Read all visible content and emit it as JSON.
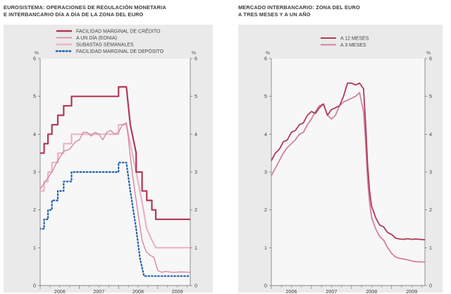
{
  "chart_data": [
    {
      "type": "line",
      "title": "EUROSISTEMA: OPERACIONES DE REGULACIÓN MONETARIA\nE INTERBANCARIO DÍA A DÍA DE LA ZONA DEL EURO",
      "unit_left": "%",
      "unit_right": "%",
      "x_tick_labels": [
        "2006",
        "2007",
        "2008",
        "2009"
      ],
      "xlim": [
        2006,
        2009.83
      ],
      "ylim": [
        0,
        6
      ],
      "y_ticks": [
        0,
        1,
        2,
        3,
        4,
        5,
        6
      ],
      "legend_position": "top",
      "series": [
        {
          "name": "FACILIDAD MARGINAL DE CRÉDITO",
          "color": "#b03a55",
          "style": "solid",
          "width": 2.2,
          "x": [
            2005.9,
            2006.0,
            2006.1,
            2006.1,
            2006.2,
            2006.2,
            2006.3,
            2006.3,
            2006.45,
            2006.45,
            2006.6,
            2006.6,
            2006.8,
            2006.8,
            2006.95,
            2006.95,
            2007.45,
            2007.45,
            2008.0,
            2008.0,
            2008.2,
            2008.3,
            2008.45,
            2008.45,
            2008.6,
            2008.6,
            2008.72,
            2008.72,
            2008.85,
            2008.85,
            2008.95,
            2008.95,
            2009.83
          ],
          "values": [
            3.5,
            3.5,
            3.5,
            3.75,
            3.75,
            4.0,
            4.0,
            4.25,
            4.25,
            4.5,
            4.5,
            4.75,
            4.75,
            5.0,
            5.0,
            5.0,
            5.0,
            5.0,
            5.0,
            5.25,
            5.25,
            4.25,
            3.5,
            3.0,
            3.0,
            2.5,
            2.5,
            2.25,
            2.25,
            2.0,
            2.0,
            1.75,
            1.75
          ]
        },
        {
          "name": "A UN DÍA (EONIA)",
          "color": "#d5809c",
          "style": "solid",
          "width": 1.3,
          "x": [
            2005.9,
            2006.0,
            2006.1,
            2006.2,
            2006.3,
            2006.45,
            2006.6,
            2006.75,
            2006.9,
            2007.0,
            2007.1,
            2007.2,
            2007.3,
            2007.4,
            2007.5,
            2007.6,
            2007.7,
            2007.8,
            2007.9,
            2008.0,
            2008.1,
            2008.2,
            2008.25,
            2008.3,
            2008.4,
            2008.5,
            2008.6,
            2008.7,
            2008.8,
            2008.9,
            2009.0,
            2009.1,
            2009.2,
            2009.4,
            2009.6,
            2009.83
          ],
          "values": [
            2.6,
            2.55,
            2.7,
            2.85,
            3.0,
            3.3,
            3.55,
            3.6,
            3.8,
            3.85,
            4.05,
            4.05,
            3.95,
            4.05,
            4.0,
            3.85,
            4.05,
            4.1,
            4.0,
            4.05,
            4.25,
            4.3,
            3.9,
            3.4,
            2.6,
            1.9,
            1.2,
            0.9,
            0.8,
            0.75,
            0.4,
            0.35,
            0.37,
            0.35,
            0.36,
            0.35
          ]
        },
        {
          "name": "SUBASTAS SEMANALES",
          "color": "#e9b5c4",
          "style": "solid",
          "width": 2.2,
          "x": [
            2005.9,
            2006.0,
            2006.1,
            2006.1,
            2006.2,
            2006.2,
            2006.3,
            2006.3,
            2006.45,
            2006.45,
            2006.6,
            2006.6,
            2006.8,
            2006.8,
            2006.95,
            2006.95,
            2007.45,
            2007.45,
            2008.0,
            2008.0,
            2008.2,
            2008.3,
            2008.45,
            2008.6,
            2008.72,
            2008.85,
            2008.95,
            2008.95,
            2009.83
          ],
          "values": [
            2.5,
            2.5,
            2.5,
            2.75,
            2.75,
            3.0,
            3.0,
            3.25,
            3.25,
            3.5,
            3.5,
            3.75,
            3.75,
            4.0,
            4.0,
            4.0,
            4.0,
            4.0,
            4.0,
            4.25,
            4.25,
            3.75,
            3.0,
            2.2,
            1.5,
            1.2,
            1.0,
            1.0,
            1.0
          ]
        },
        {
          "name": "FACILIDAD MARGINAL DE DEPÓSITO",
          "color": "#1f5fa8",
          "style": "dotted",
          "width": 2.2,
          "x": [
            2005.9,
            2006.0,
            2006.1,
            2006.1,
            2006.2,
            2006.2,
            2006.3,
            2006.3,
            2006.45,
            2006.45,
            2006.6,
            2006.6,
            2006.8,
            2006.8,
            2006.95,
            2006.95,
            2007.45,
            2007.45,
            2008.0,
            2008.0,
            2008.2,
            2008.3,
            2008.45,
            2008.55,
            2008.65,
            2008.75,
            2008.85,
            2008.95,
            2009.83
          ],
          "values": [
            1.5,
            1.5,
            1.5,
            1.75,
            1.75,
            2.0,
            2.0,
            2.25,
            2.25,
            2.5,
            2.5,
            2.75,
            2.75,
            3.0,
            3.0,
            3.0,
            3.0,
            3.0,
            3.0,
            3.25,
            3.25,
            2.5,
            1.5,
            0.7,
            0.25,
            0.25,
            0.25,
            0.25,
            0.25
          ]
        }
      ]
    },
    {
      "type": "line",
      "title": "MERCADO INTERBANCARIO: ZONA DEL EURO\nA TRES MESES Y A UN AÑO",
      "unit_left": "%",
      "unit_right": "%",
      "x_tick_labels": [
        "2006",
        "2007",
        "2008",
        "2009"
      ],
      "xlim": [
        2006,
        2009.83
      ],
      "ylim": [
        0,
        6
      ],
      "y_ticks": [
        0,
        1,
        2,
        3,
        4,
        5,
        6
      ],
      "legend_position": "top-left",
      "series": [
        {
          "name": "A 12 MESES",
          "color": "#b03a55",
          "style": "solid",
          "width": 1.8,
          "x": [
            2005.9,
            2006.0,
            2006.1,
            2006.2,
            2006.3,
            2006.4,
            2006.5,
            2006.6,
            2006.7,
            2006.8,
            2006.9,
            2007.0,
            2007.1,
            2007.2,
            2007.3,
            2007.4,
            2007.5,
            2007.6,
            2007.7,
            2007.8,
            2007.9,
            2008.0,
            2008.1,
            2008.2,
            2008.3,
            2008.35,
            2008.4,
            2008.45,
            2008.5,
            2008.6,
            2008.7,
            2008.8,
            2008.9,
            2009.0,
            2009.1,
            2009.2,
            2009.3,
            2009.4,
            2009.5,
            2009.6,
            2009.83
          ],
          "values": [
            3.2,
            3.3,
            3.5,
            3.6,
            3.8,
            3.85,
            4.05,
            4.1,
            4.25,
            4.3,
            4.5,
            4.6,
            4.55,
            4.7,
            4.8,
            4.5,
            4.65,
            4.7,
            4.75,
            5.0,
            5.35,
            5.35,
            5.3,
            5.35,
            5.2,
            4.3,
            3.2,
            2.5,
            2.1,
            1.8,
            1.6,
            1.55,
            1.4,
            1.35,
            1.25,
            1.23,
            1.22,
            1.24,
            1.22,
            1.23,
            1.21
          ]
        },
        {
          "name": "A 3 MESES",
          "color": "#d5809c",
          "style": "solid",
          "width": 1.8,
          "x": [
            2005.9,
            2006.0,
            2006.1,
            2006.2,
            2006.3,
            2006.4,
            2006.5,
            2006.6,
            2006.7,
            2006.8,
            2006.9,
            2007.0,
            2007.1,
            2007.2,
            2007.3,
            2007.4,
            2007.5,
            2007.6,
            2007.7,
            2007.8,
            2007.9,
            2008.0,
            2008.1,
            2008.2,
            2008.3,
            2008.35,
            2008.4,
            2008.45,
            2008.5,
            2008.6,
            2008.7,
            2008.8,
            2008.9,
            2009.0,
            2009.1,
            2009.2,
            2009.3,
            2009.4,
            2009.5,
            2009.6,
            2009.83
          ],
          "values": [
            2.8,
            2.9,
            3.1,
            3.3,
            3.5,
            3.65,
            3.75,
            3.85,
            4.0,
            4.05,
            4.25,
            4.4,
            4.6,
            4.75,
            4.8,
            4.5,
            4.4,
            4.5,
            4.75,
            4.85,
            4.9,
            4.95,
            5.0,
            5.1,
            4.6,
            3.8,
            2.8,
            2.2,
            1.8,
            1.5,
            1.3,
            1.2,
            1.0,
            0.85,
            0.75,
            0.72,
            0.7,
            0.68,
            0.65,
            0.63,
            0.62
          ]
        }
      ]
    }
  ]
}
